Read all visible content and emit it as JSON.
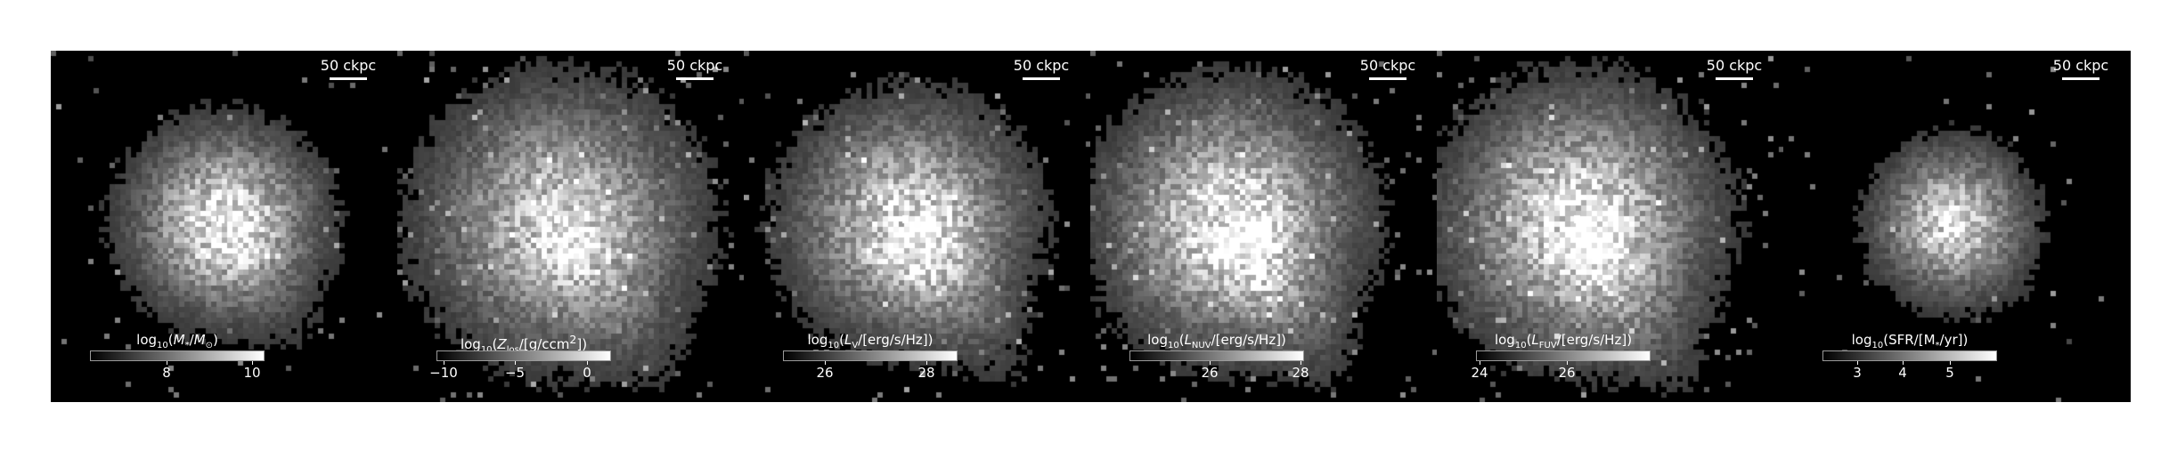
{
  "figure": {
    "scale_label": "50 ckpc",
    "panels": [
      {
        "id": "stellar-mass",
        "label_html": "log<sub>10</sub>(<i>M</i><sub>*</sub>/<i>M</i><sub>&#8857;</sub>)",
        "ticks": [
          {
            "text": "8",
            "frac": 0.44
          },
          {
            "text": "10",
            "frac": 0.93
          }
        ],
        "blob": {
          "brightness": 1.0,
          "spread": 0.55,
          "tail": 0.35
        }
      },
      {
        "id": "metallicity",
        "label_html": "log<sub>10</sub>(<i>Z</i><sub>los</sub>/[g/ccm<sup>2</sup>])",
        "ticks": [
          {
            "text": "−10",
            "frac": 0.04
          },
          {
            "text": "−5",
            "frac": 0.45
          },
          {
            "text": "0",
            "frac": 0.86
          }
        ],
        "blob": {
          "brightness": 0.85,
          "spread": 1.0,
          "tail": 0.8
        }
      },
      {
        "id": "v-band",
        "label_html": "log<sub>10</sub>(<i>L</i><sub>V</sub>/[erg/s/Hz])",
        "ticks": [
          {
            "text": "26",
            "frac": 0.24
          },
          {
            "text": "28",
            "frac": 0.82
          }
        ],
        "blob": {
          "brightness": 0.95,
          "spread": 0.8,
          "tail": 0.9
        }
      },
      {
        "id": "nuv",
        "label_html": "log<sub>10</sub>(<i>L</i><sub>NUV</sub>/[erg/s/Hz])",
        "ticks": [
          {
            "text": "26",
            "frac": 0.46
          },
          {
            "text": "28",
            "frac": 0.98
          }
        ],
        "blob": {
          "brightness": 1.0,
          "spread": 0.9,
          "tail": 1.0
        }
      },
      {
        "id": "fuv",
        "label_html": "log<sub>10</sub>(<i>L</i><sub>FUV</sub>/[erg/s/Hz])",
        "ticks": [
          {
            "text": "24",
            "frac": 0.02
          },
          {
            "text": "26",
            "frac": 0.52
          }
        ],
        "blob": {
          "brightness": 1.0,
          "spread": 0.95,
          "tail": 1.0
        }
      },
      {
        "id": "sfr",
        "label_html": "log<sub>10</sub>(SFR/[M<sub>*</sub>/yr])",
        "ticks": [
          {
            "text": "3",
            "frac": 0.2
          },
          {
            "text": "4",
            "frac": 0.46
          },
          {
            "text": "5",
            "frac": 0.73
          }
        ],
        "blob": {
          "brightness": 0.9,
          "spread": 0.35,
          "tail": 0.15
        }
      }
    ]
  }
}
